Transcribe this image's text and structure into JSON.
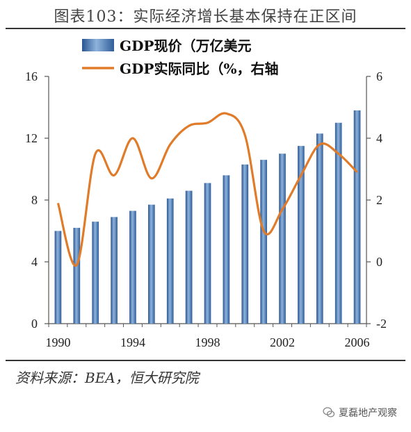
{
  "title": "图表103：实际经济增长基本保持在正区间",
  "source": "资料来源：BEA，恒大研究院",
  "watermark": "夏磊地产观察",
  "chart_data": {
    "type": "bar+line",
    "legend": [
      {
        "name": "GDP现价（万亿美元",
        "type": "bar",
        "color": "#3f6fa8"
      },
      {
        "name": "GDP实际同比（%，右轴",
        "type": "line",
        "color": "#e07b2a"
      }
    ],
    "x": [
      1990,
      1991,
      1992,
      1993,
      1994,
      1995,
      1996,
      1997,
      1998,
      1999,
      2000,
      2001,
      2002,
      2003,
      2004,
      2005,
      2006
    ],
    "x_tick_labels": [
      "1990",
      "1994",
      "1998",
      "2002",
      "2006"
    ],
    "series": [
      {
        "name": "GDP现价（万亿美元",
        "axis": "left",
        "values": [
          6.0,
          6.2,
          6.6,
          6.9,
          7.3,
          7.7,
          8.1,
          8.6,
          9.1,
          9.6,
          10.3,
          10.6,
          11.0,
          11.5,
          12.3,
          13.0,
          13.8
        ]
      },
      {
        "name": "GDP实际同比（%，右轴",
        "axis": "right",
        "values": [
          1.9,
          -0.1,
          3.5,
          2.8,
          4.0,
          2.7,
          3.8,
          4.4,
          4.5,
          4.8,
          4.1,
          1.0,
          1.7,
          2.8,
          3.8,
          3.5,
          2.9
        ]
      }
    ],
    "y_left": {
      "min": 0,
      "max": 16,
      "ticks": [
        0,
        4,
        8,
        12,
        16
      ]
    },
    "y_right": {
      "min": -2,
      "max": 6,
      "ticks": [
        -2,
        0,
        2,
        4,
        6
      ]
    },
    "legend_position": "top-center",
    "grid": false
  }
}
